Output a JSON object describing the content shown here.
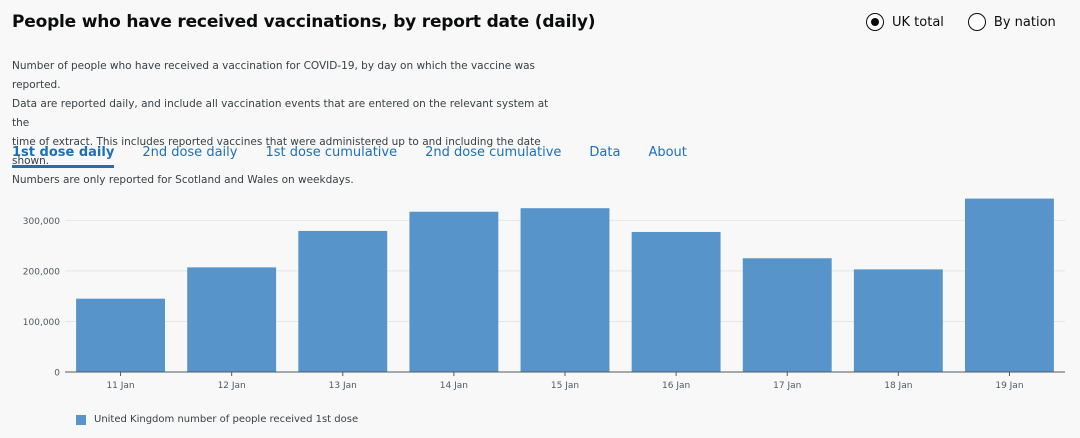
{
  "page": {
    "title": "People who have received vaccinations, by report date (daily)",
    "description": [
      "Number of people who have received a vaccination for COVID-19, by day on which the vaccine was reported.",
      "Data are reported daily, and include all vaccination events that are entered on the relevant system at the",
      "time of extract. This includes reported vaccines that were administered up to and including the date shown.",
      "Numbers are only reported for Scotland and Wales on weekdays."
    ]
  },
  "radios": {
    "uk_total": "UK total",
    "by_nation": "By nation",
    "selected": "uk_total"
  },
  "tabs": [
    "1st dose daily",
    "2nd dose daily",
    "1st dose cumulative",
    "2nd dose cumulative",
    "Data",
    "About"
  ],
  "colors": {
    "bar": "#5694ca",
    "accent": "#1d70b8"
  },
  "chart_data": {
    "type": "bar",
    "categories": [
      "11 Jan",
      "12 Jan",
      "13 Jan",
      "14 Jan",
      "15 Jan",
      "16 Jan",
      "17 Jan",
      "18 Jan",
      "19 Jan"
    ],
    "series": [
      {
        "name": "United Kingdom number of people received 1st dose",
        "values": [
          145000,
          207000,
          279000,
          317000,
          324000,
          277000,
          225000,
          203000,
          343000
        ]
      }
    ],
    "yticks": [
      0,
      100000,
      200000,
      300000
    ],
    "ytick_labels": [
      "0",
      "100,000",
      "200,000",
      "300,000"
    ],
    "ylim": [
      0,
      360000
    ],
    "legend": "bottom-left",
    "grid": true
  }
}
